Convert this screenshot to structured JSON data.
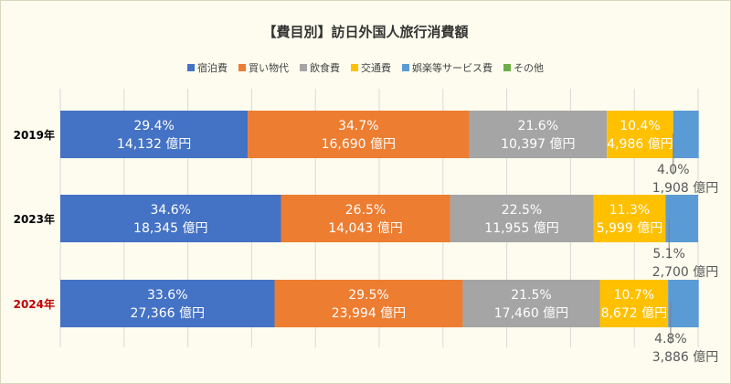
{
  "chart_data": {
    "type": "bar",
    "orientation": "horizontal",
    "stacked": "percent",
    "title": "【費目別】訪日外国人旅行消費額",
    "legend_position": "top",
    "grid": true,
    "categories": [
      "2019年",
      "2023年",
      "2024年"
    ],
    "category_colors": [
      "#000000",
      "#000000",
      "#c00000"
    ],
    "unit": "億円",
    "xlim": [
      0,
      100
    ],
    "series": [
      {
        "name": "宿泊費",
        "color": "#4472c4",
        "percent": [
          29.4,
          34.6,
          33.6
        ],
        "amount": [
          14132,
          18345,
          27366
        ],
        "labels": [
          "29.4%",
          "34.6%",
          "33.6%"
        ],
        "amount_labels": [
          "14,132 億円",
          "18,345 億円",
          "27,366 億円"
        ]
      },
      {
        "name": "買い物代",
        "color": "#ed7d31",
        "percent": [
          34.7,
          26.5,
          29.5
        ],
        "amount": [
          16690,
          14043,
          23994
        ],
        "labels": [
          "34.7%",
          "26.5%",
          "29.5%"
        ],
        "amount_labels": [
          "16,690 億円",
          "14,043 億円",
          "23,994 億円"
        ]
      },
      {
        "name": "飲食費",
        "color": "#a5a5a5",
        "percent": [
          21.6,
          22.5,
          21.5
        ],
        "amount": [
          10397,
          11955,
          17460
        ],
        "labels": [
          "21.6%",
          "22.5%",
          "21.5%"
        ],
        "amount_labels": [
          "10,397 億円",
          "11,955 億円",
          "17,460 億円"
        ]
      },
      {
        "name": "交通費",
        "color": "#ffc000",
        "percent": [
          10.4,
          11.3,
          10.7
        ],
        "amount": [
          4986,
          5999,
          8672
        ],
        "labels": [
          "10.4%",
          "11.3%",
          "10.7%"
        ],
        "amount_labels": [
          "4,986 億円",
          "5,999 億円",
          "8,672 億円"
        ]
      },
      {
        "name": "娯楽等サービス費",
        "color": "#5b9bd5",
        "percent": [
          4.0,
          5.1,
          4.8
        ],
        "amount": [
          1908,
          2700,
          3886
        ],
        "labels": [
          "4.0%",
          "5.1%",
          "4.8%"
        ],
        "amount_labels": [
          "1,908 億円",
          "2,700 億円",
          "3,886 億円"
        ]
      },
      {
        "name": "その他",
        "color": "#70ad47",
        "percent": [
          0,
          0,
          0
        ],
        "amount": [
          null,
          null,
          null
        ],
        "labels": [],
        "amount_labels": []
      }
    ]
  }
}
